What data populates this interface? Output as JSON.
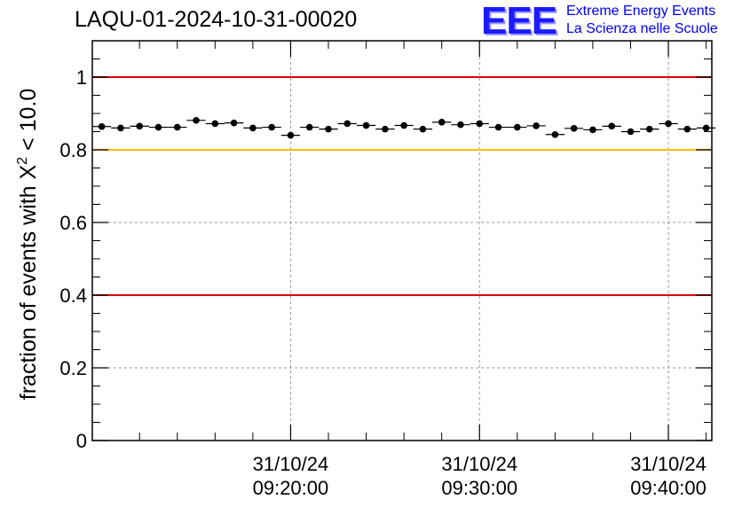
{
  "title": "LAQU-01-2024-10-31-00020",
  "logo": {
    "mark": "EEE",
    "line1": "Extreme Energy Events",
    "line2": "La Scienza nelle Scuole"
  },
  "chart_data": {
    "type": "scatter",
    "title": "LAQU-01-2024-10-31-00020",
    "ylabel_main": "fraction of events with X",
    "ylabel_sup": "2",
    "ylabel_tail": " < 10.0",
    "xlabel": "",
    "ylim": [
      0,
      1.1
    ],
    "xlim_minutes": [
      9.5,
      42.3
    ],
    "x_ticks": [
      {
        "minute": 20,
        "date": "31/10/24",
        "time": "09:20:00"
      },
      {
        "minute": 30,
        "date": "31/10/24",
        "time": "09:30:00"
      },
      {
        "minute": 40,
        "date": "31/10/24",
        "time": "09:40:00"
      }
    ],
    "y_ticks": [
      {
        "value": 0,
        "label": "0"
      },
      {
        "value": 0.2,
        "label": "0.2"
      },
      {
        "value": 0.4,
        "label": "0.4"
      },
      {
        "value": 0.6,
        "label": "0.6"
      },
      {
        "value": 0.8,
        "label": "0.8"
      },
      {
        "value": 1.0,
        "label": "1"
      }
    ],
    "grid": true,
    "reference_lines": [
      {
        "y": 1.0,
        "color": "#dd0000"
      },
      {
        "y": 0.8,
        "color": "#ffbb00"
      },
      {
        "y": 0.4,
        "color": "#dd0000"
      }
    ],
    "points_minute": [
      10,
      11,
      12,
      13,
      14,
      15,
      16,
      17,
      18,
      19,
      20,
      21,
      22,
      23,
      24,
      25,
      26,
      27,
      28,
      29,
      30,
      31,
      32,
      33,
      34,
      35,
      36,
      37,
      38,
      39,
      40,
      41,
      42
    ],
    "y": [
      0.864,
      0.86,
      0.865,
      0.862,
      0.862,
      0.881,
      0.872,
      0.874,
      0.86,
      0.862,
      0.84,
      0.862,
      0.857,
      0.872,
      0.867,
      0.857,
      0.867,
      0.857,
      0.876,
      0.869,
      0.872,
      0.862,
      0.862,
      0.866,
      0.842,
      0.859,
      0.855,
      0.865,
      0.85,
      0.857,
      0.872,
      0.857,
      0.86
    ],
    "marker_color": "#000000"
  }
}
